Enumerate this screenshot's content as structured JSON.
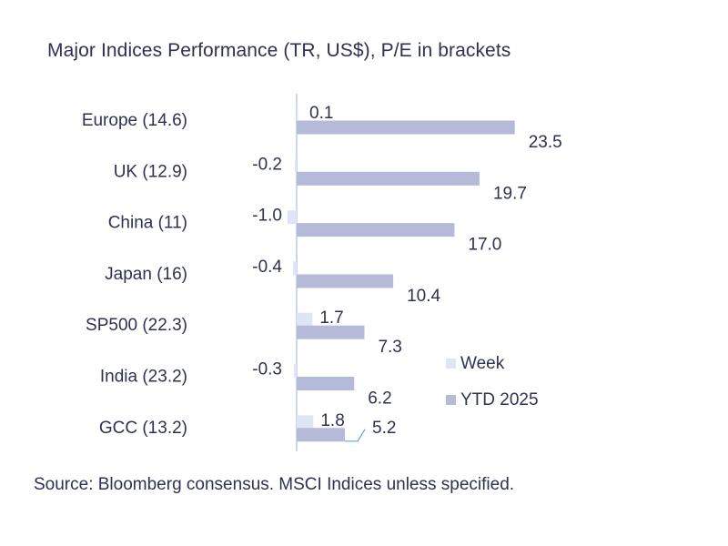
{
  "title": "Major Indices Performance (TR, US$), P/E in brackets",
  "source": "Source: Bloomberg consensus. MSCI Indices unless specified.",
  "chart_data": {
    "type": "bar",
    "orientation": "horizontal",
    "categories": [
      "Europe (14.6)",
      "UK (12.9)",
      "China (11)",
      "Japan (16)",
      "SP500 (22.3)",
      "India (23.2)",
      "GCC (13.2)"
    ],
    "series": [
      {
        "name": "Week",
        "color": "#dfe5f7",
        "values": [
          0.1,
          -0.2,
          -1.0,
          -0.4,
          1.7,
          -0.3,
          1.8
        ],
        "labels": [
          "0.1",
          "-0.2",
          "-1.0",
          "-0.4",
          "1.7",
          "-0.3",
          "1.8"
        ]
      },
      {
        "name": "YTD 2025",
        "color": "#b6bad9",
        "values": [
          23.5,
          19.7,
          17.0,
          10.4,
          7.3,
          6.2,
          5.2
        ],
        "labels": [
          "23.5",
          "19.7",
          "17.0",
          "10.4",
          "7.3",
          "6.2",
          "5.2"
        ]
      }
    ],
    "xlim": [
      -2,
      23.5
    ],
    "legend_position": "right",
    "axis_line_color": "#c9d8ef"
  }
}
